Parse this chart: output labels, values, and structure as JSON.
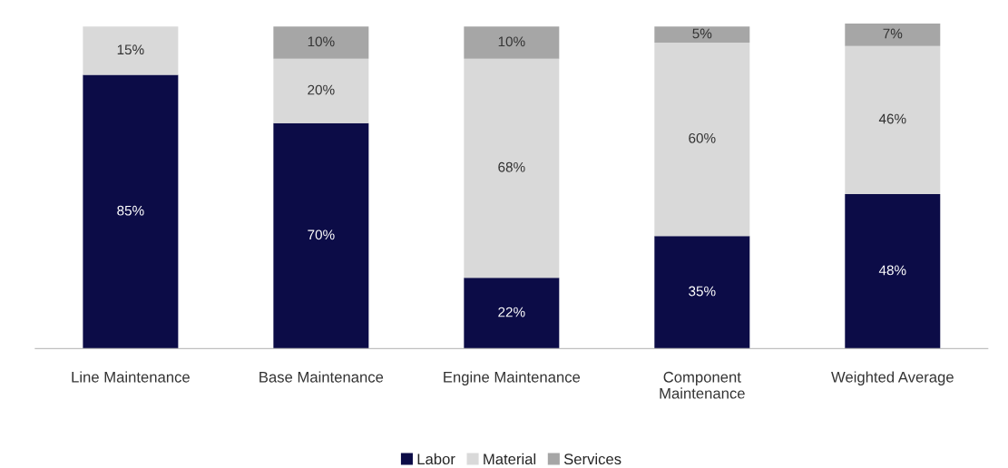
{
  "chart_data": {
    "type": "bar",
    "stacked": true,
    "legend": "bottom",
    "grid": false,
    "categories": [
      "Line Maintenance",
      "Base Maintenance",
      "Engine Maintenance",
      "Component\nMaintenance",
      "Weighted Average"
    ],
    "series": [
      {
        "name": "Labor",
        "color": "#0c0c47",
        "values": [
          85,
          70,
          22,
          35,
          48
        ],
        "value_labels": [
          "85%",
          "70%",
          "22%",
          "35%",
          "48%"
        ]
      },
      {
        "name": "Material",
        "color": "#d9d9d9",
        "values": [
          15,
          20,
          68,
          60,
          46
        ],
        "value_labels": [
          "15%",
          "20%",
          "68%",
          "60%",
          "46%"
        ]
      },
      {
        "name": "Services",
        "color": "#a6a6a6",
        "values": [
          null,
          10,
          10,
          5,
          7
        ],
        "value_labels": [
          null,
          "10%",
          "10%",
          "5%",
          "7%"
        ]
      }
    ]
  }
}
